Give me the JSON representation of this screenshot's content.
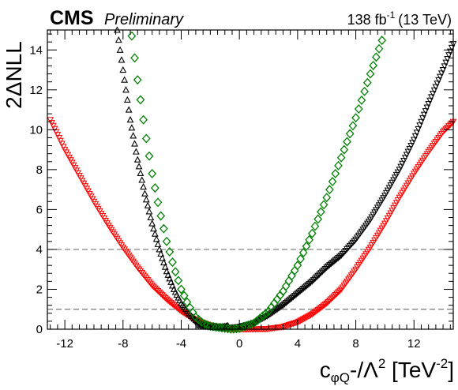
{
  "header": {
    "experiment": "CMS",
    "status": "Preliminary",
    "lumi_value": "138 fb",
    "lumi_exp": "-1",
    "lumi_energy": "(13 TeV)"
  },
  "axes": {
    "ylabel": "2ΔNLL",
    "xlabel_main": "c",
    "xlabel_sub": "φQ",
    "xlabel_mid": "-/Λ",
    "xlabel_sq": "2",
    "xlabel_unit": " [TeV",
    "xlabel_unit_exp": "-2",
    "xlabel_close": "]"
  },
  "chart_data": {
    "type": "scatter",
    "xlim": [
      -13.2,
      14.7
    ],
    "ylim": [
      0,
      15
    ],
    "x_ticks": [
      -12,
      -8,
      -4,
      0,
      4,
      8,
      12
    ],
    "y_ticks": [
      0,
      2,
      4,
      6,
      8,
      10,
      12,
      14
    ],
    "x_tick_labels": [
      "-12",
      "-8",
      "-4",
      "0",
      "4",
      "8",
      "12"
    ],
    "y_tick_labels": [
      "0",
      "2",
      "4",
      "6",
      "8",
      "10",
      "12",
      "14"
    ],
    "reference_lines": [
      1,
      4
    ],
    "series": [
      {
        "marker": "triangle-down",
        "color": "#ff0000",
        "x_range": [
          -13.2,
          14.7
        ],
        "points": [
          [
            -13.0,
            10.5
          ],
          [
            -12.0,
            9.0
          ],
          [
            -11.0,
            7.7
          ],
          [
            -10.0,
            6.4
          ],
          [
            -9.0,
            5.2
          ],
          [
            -8.0,
            4.1
          ],
          [
            -7.0,
            3.1
          ],
          [
            -6.0,
            2.2
          ],
          [
            -5.0,
            1.5
          ],
          [
            -4.0,
            0.9
          ],
          [
            -3.0,
            0.45
          ],
          [
            -2.0,
            0.18
          ],
          [
            -1.0,
            0.05
          ],
          [
            0.0,
            0.0
          ],
          [
            1.0,
            0.0
          ],
          [
            2.0,
            0.02
          ],
          [
            3.0,
            0.12
          ],
          [
            4.0,
            0.35
          ],
          [
            5.0,
            0.75
          ],
          [
            6.0,
            1.3
          ],
          [
            7.0,
            2.0
          ],
          [
            8.0,
            3.0
          ],
          [
            9.0,
            4.1
          ],
          [
            10.0,
            5.3
          ],
          [
            11.0,
            6.6
          ],
          [
            12.0,
            7.8
          ],
          [
            13.0,
            8.9
          ],
          [
            14.0,
            9.9
          ],
          [
            14.7,
            10.4
          ]
        ]
      },
      {
        "marker": "triangle-down",
        "color": "#000000",
        "x_range": [
          -2.9,
          14.7
        ],
        "points": [
          [
            -2.9,
            0.2
          ],
          [
            -2.0,
            0.1
          ],
          [
            -1.0,
            0.05
          ],
          [
            0.0,
            0.12
          ],
          [
            1.0,
            0.3
          ],
          [
            2.0,
            0.7
          ],
          [
            3.0,
            1.2
          ],
          [
            4.0,
            1.8
          ],
          [
            5.0,
            2.4
          ],
          [
            6.0,
            3.1
          ],
          [
            7.0,
            3.7
          ],
          [
            8.0,
            4.5
          ],
          [
            9.0,
            5.5
          ],
          [
            10.0,
            6.7
          ],
          [
            11.0,
            8.0
          ],
          [
            12.0,
            9.5
          ],
          [
            13.0,
            11.3
          ],
          [
            14.0,
            13.0
          ],
          [
            14.7,
            14.3
          ]
        ]
      },
      {
        "marker": "triangle-up",
        "color": "#000000",
        "x_range": [
          -8.4,
          -0.8
        ],
        "points": [
          [
            -8.4,
            15.0
          ],
          [
            -8.0,
            13.0
          ],
          [
            -7.5,
            10.5
          ],
          [
            -7.0,
            8.5
          ],
          [
            -6.5,
            6.8
          ],
          [
            -6.0,
            5.3
          ],
          [
            -5.5,
            4.0
          ],
          [
            -5.0,
            2.9
          ],
          [
            -4.5,
            2.0
          ],
          [
            -4.0,
            1.3
          ],
          [
            -3.5,
            0.8
          ],
          [
            -3.0,
            0.45
          ],
          [
            -2.5,
            0.25
          ],
          [
            -2.0,
            0.15
          ],
          [
            -1.5,
            0.12
          ],
          [
            -1.0,
            0.15
          ],
          [
            -0.8,
            0.18
          ]
        ]
      },
      {
        "marker": "diamond",
        "color": "#008000",
        "x_range": [
          -7.4,
          10.2
        ],
        "points": [
          [
            -7.4,
            14.7
          ],
          [
            -7.0,
            12.5
          ],
          [
            -6.5,
            10.0
          ],
          [
            -6.0,
            7.8
          ],
          [
            -5.5,
            6.0
          ],
          [
            -5.0,
            4.4
          ],
          [
            -4.5,
            3.1
          ],
          [
            -4.0,
            2.0
          ],
          [
            -3.5,
            1.2
          ],
          [
            -3.0,
            0.6
          ],
          [
            -2.5,
            0.3
          ],
          [
            -2.0,
            0.15
          ],
          [
            -1.5,
            0.1
          ],
          [
            -1.0,
            0.05
          ],
          [
            -0.5,
            0.0
          ],
          [
            0.0,
            0.05
          ],
          [
            1.0,
            0.3
          ],
          [
            2.0,
            0.9
          ],
          [
            3.0,
            1.9
          ],
          [
            4.0,
            3.2
          ],
          [
            5.0,
            4.8
          ],
          [
            6.0,
            6.6
          ],
          [
            7.0,
            8.6
          ],
          [
            8.0,
            10.6
          ],
          [
            9.0,
            12.8
          ],
          [
            10.0,
            14.9
          ]
        ]
      }
    ]
  }
}
